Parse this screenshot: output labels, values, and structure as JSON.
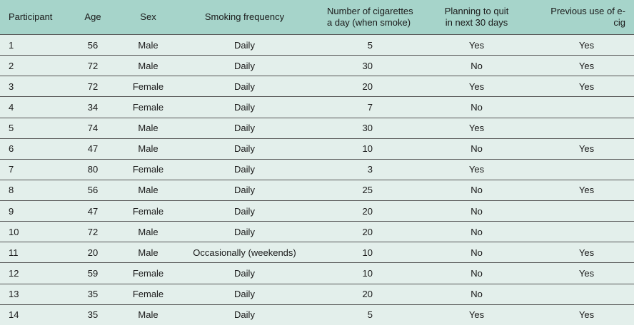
{
  "table": {
    "header": [
      [
        "Participant"
      ],
      [
        "Age"
      ],
      [
        "Sex"
      ],
      [
        "Smoking frequency"
      ],
      [
        "Number of cigarettes",
        "a day (when smoke)"
      ],
      [
        "Planning to quit",
        "in next 30 days"
      ],
      [
        "Previous use of e-cig"
      ]
    ],
    "rows": [
      [
        1,
        56,
        "Male",
        "Daily",
        5,
        "Yes",
        "Yes"
      ],
      [
        2,
        72,
        "Male",
        "Daily",
        30,
        "No",
        "Yes"
      ],
      [
        3,
        72,
        "Female",
        "Daily",
        20,
        "Yes",
        "Yes"
      ],
      [
        4,
        34,
        "Female",
        "Daily",
        7,
        "No",
        null
      ],
      [
        5,
        74,
        "Male",
        "Daily",
        30,
        "Yes",
        null
      ],
      [
        6,
        47,
        "Male",
        "Daily",
        10,
        "No",
        "Yes"
      ],
      [
        7,
        80,
        "Female",
        "Daily",
        3,
        "Yes",
        null
      ],
      [
        8,
        56,
        "Male",
        "Daily",
        25,
        "No",
        "Yes"
      ],
      [
        9,
        47,
        "Female",
        "Daily",
        20,
        "No",
        null
      ],
      [
        10,
        72,
        "Male",
        "Daily",
        20,
        "No",
        null
      ],
      [
        11,
        20,
        "Male",
        "Occasionally (weekends)",
        10,
        "No",
        "Yes"
      ],
      [
        12,
        59,
        "Female",
        "Daily",
        10,
        "No",
        "Yes"
      ],
      [
        13,
        35,
        "Female",
        "Daily",
        20,
        "No",
        null
      ],
      [
        14,
        35,
        "Male",
        "Daily",
        5,
        "Yes",
        "Yes"
      ]
    ]
  }
}
